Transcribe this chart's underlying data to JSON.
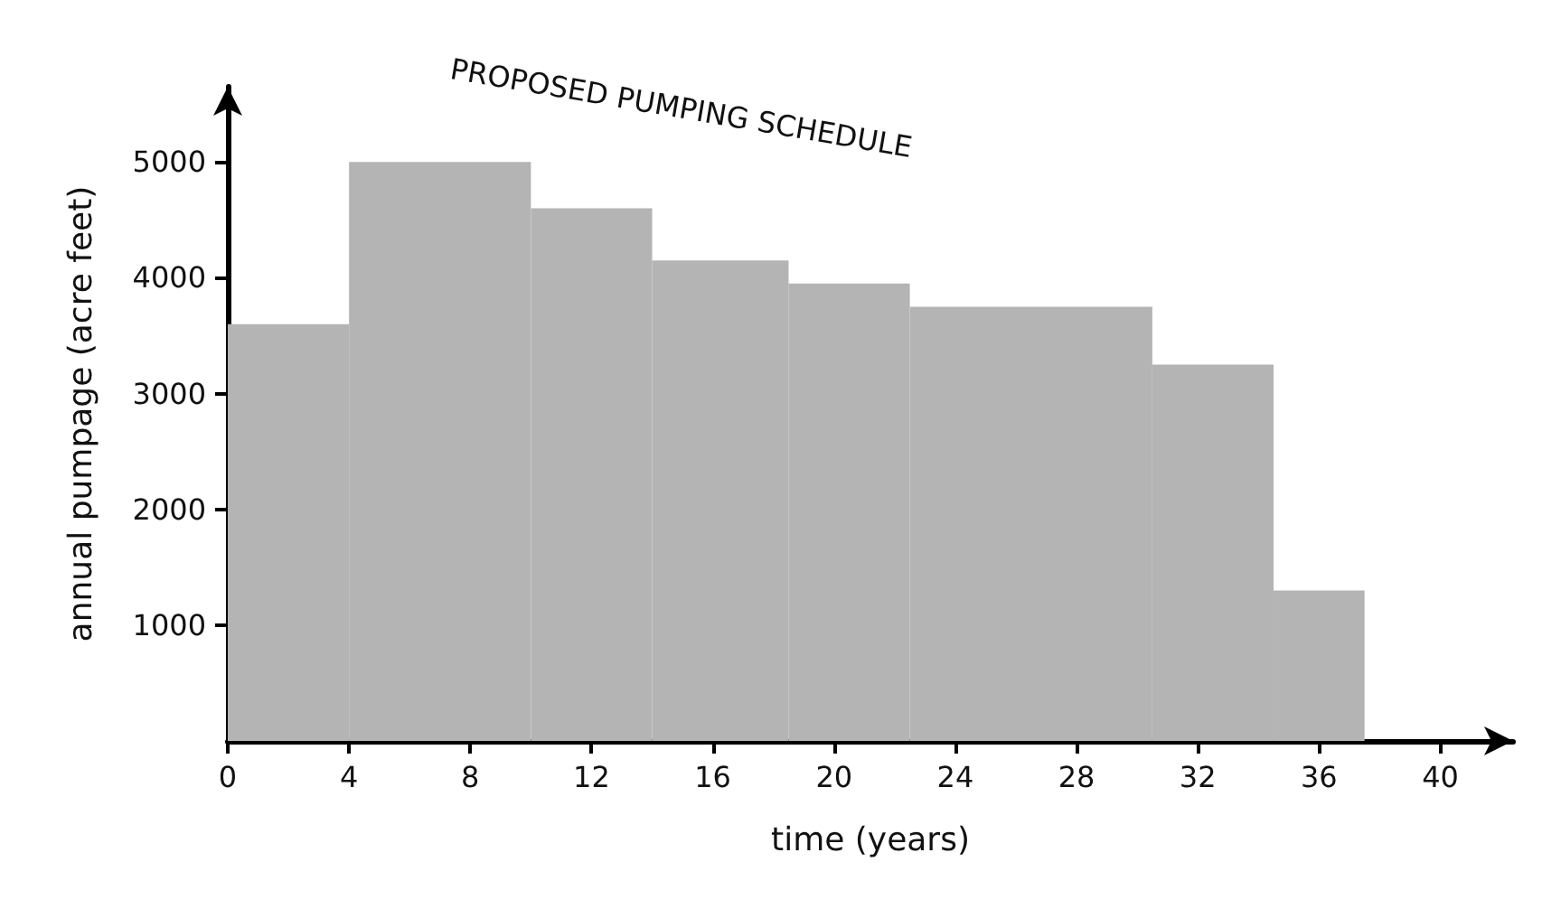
{
  "chart_data": {
    "type": "histogram",
    "xlabel": "time (years)",
    "ylabel": "annual pumpage (acre feet)",
    "annotations": [
      "PROPOSED PUMPING SCHEDULE"
    ],
    "bins": [
      0,
      4,
      10,
      14,
      18.5,
      22.5,
      30.5,
      34.5,
      37.5
    ],
    "values": [
      3600,
      5000,
      4600,
      4150,
      3950,
      3750,
      3250,
      1300
    ],
    "color": "#b4b4b4",
    "xlim": [
      0,
      42.4
    ],
    "xticks": [
      0,
      4,
      8,
      12,
      16,
      20,
      24,
      28,
      32,
      36,
      40
    ],
    "ylim": [
      0,
      5650
    ],
    "yticks": [
      1000,
      2000,
      3000,
      4000,
      5000
    ],
    "grid": false
  }
}
